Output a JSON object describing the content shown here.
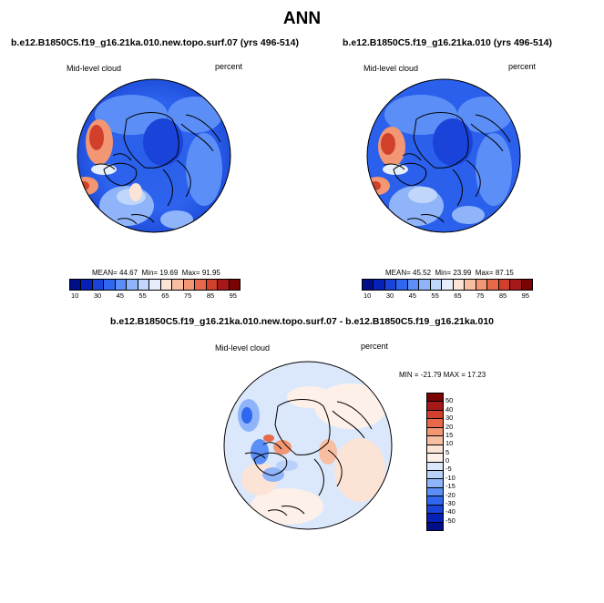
{
  "main_title": "ANN",
  "panels": [
    {
      "case": "b.e12.B1850C5.f19_g16.21ka.010.new.topo.surf.07 (yrs 496-514)",
      "variable": "Mid-level cloud",
      "units": "percent",
      "mean_label": "MEAN=",
      "mean": "44.67",
      "min_label": "Min=",
      "min": "19.69",
      "max_label": "Max=",
      "max": "91.95"
    },
    {
      "case": "b.e12.B1850C5.f19_g16.21ka.010 (yrs 496-514)",
      "variable": "Mid-level cloud",
      "units": "percent",
      "mean_label": "MEAN=",
      "mean": "45.52",
      "min_label": "Min=",
      "min": "23.99",
      "max_label": "Max=",
      "max": "87.15"
    }
  ],
  "colorbar_ticks": [
    "10",
    "30",
    "45",
    "55",
    "65",
    "75",
    "85",
    "95"
  ],
  "colorbar_colors": [
    "#000e8a",
    "#0621b8",
    "#1a44d9",
    "#2f67ef",
    "#5b8ff7",
    "#8fb4fa",
    "#c0d6fb",
    "#e6eefc",
    "#fbe3d5",
    "#f7bea2",
    "#f29673",
    "#e8694a",
    "#d0402b",
    "#a7181a",
    "#7a0404"
  ],
  "diff": {
    "title": "b.e12.B1850C5.f19_g16.21ka.010.new.topo.surf.07 - b.e12.B1850C5.f19_g16.21ka.010",
    "variable": "Mid-level cloud",
    "units": "percent",
    "minmax_label": "MIN = -21.79  MAX =  17.23",
    "colorbar_ticks": [
      "50",
      "40",
      "30",
      "20",
      "15",
      "10",
      "5",
      "0",
      "-5",
      "-10",
      "-15",
      "-20",
      "-30",
      "-40",
      "-50"
    ],
    "colorbar_colors": [
      "#7a0404",
      "#a7181a",
      "#d0402b",
      "#e8694a",
      "#f29673",
      "#f7bea2",
      "#fbe3d5",
      "#fdf0e8",
      "#dbe8fb",
      "#b9d1f8",
      "#8fb4fa",
      "#5b8ff7",
      "#2f67ef",
      "#1a44d9",
      "#0621b8",
      "#000e8a"
    ]
  }
}
